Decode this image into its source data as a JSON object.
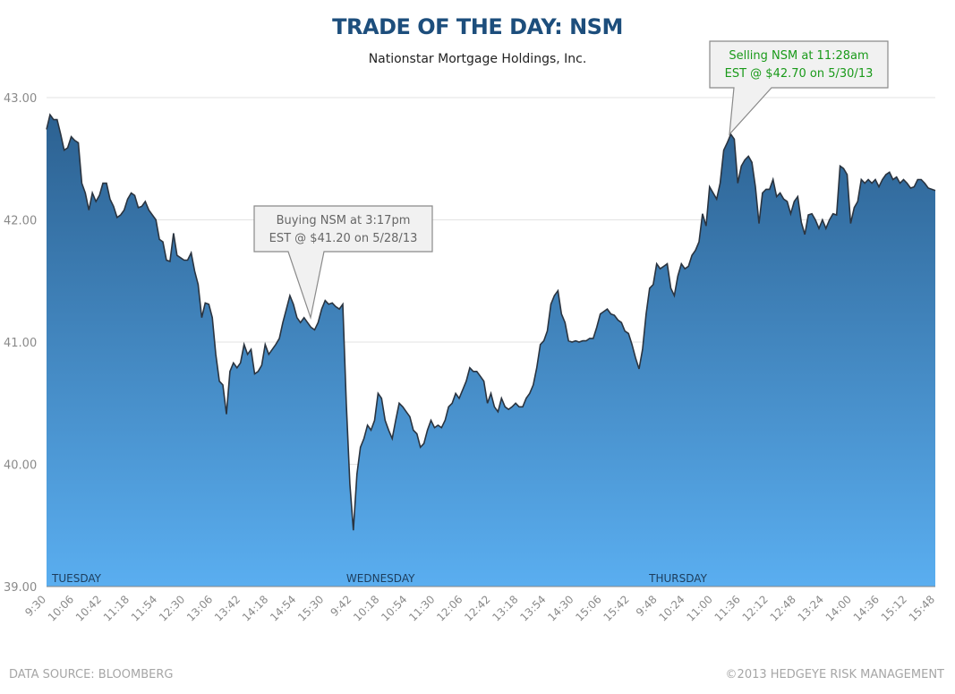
{
  "chart_data": {
    "type": "area",
    "title": "TRADE OF THE DAY: NSM",
    "subtitle": "Nationstar Mortgage Holdings, Inc.",
    "ylim": [
      39,
      43
    ],
    "yticks": [
      "39.00",
      "40.00",
      "41.00",
      "42.00",
      "43.00"
    ],
    "ytick_values": [
      39,
      40,
      41,
      42,
      43
    ],
    "grid": true,
    "xtick_labels": [
      "9:30",
      "10:06",
      "10:42",
      "11:18",
      "11:54",
      "12:30",
      "13:06",
      "13:42",
      "14:18",
      "14:54",
      "15:30",
      "9:42",
      "10:18",
      "10:54",
      "11:30",
      "12:06",
      "12:42",
      "13:18",
      "13:54",
      "14:30",
      "15:06",
      "15:42",
      "9:48",
      "10:24",
      "11:00",
      "11:36",
      "12:12",
      "12:48",
      "13:24",
      "14:00",
      "14:36",
      "15:12",
      "15:48"
    ],
    "day_labels": [
      {
        "label": "TUESDAY",
        "at_tick": 0
      },
      {
        "label": "WEDNESDAY",
        "at_tick": 10.6
      },
      {
        "label": "THURSDAY",
        "at_tick": 21.5
      }
    ],
    "values": [
      42.74,
      42.86,
      42.82,
      42.82,
      42.7,
      42.57,
      42.59,
      42.68,
      42.65,
      42.63,
      42.3,
      42.22,
      42.08,
      42.22,
      42.15,
      42.2,
      42.3,
      42.3,
      42.17,
      42.11,
      42.02,
      42.04,
      42.08,
      42.17,
      42.22,
      42.2,
      42.1,
      42.11,
      42.15,
      42.08,
      42.04,
      42.0,
      41.84,
      41.82,
      41.67,
      41.66,
      41.89,
      41.71,
      41.69,
      41.67,
      41.67,
      41.73,
      41.58,
      41.47,
      41.2,
      41.32,
      41.31,
      41.2,
      40.9,
      40.68,
      40.65,
      40.41,
      40.76,
      40.83,
      40.79,
      40.83,
      40.98,
      40.9,
      40.94,
      40.74,
      40.76,
      40.81,
      40.98,
      40.9,
      40.94,
      40.98,
      41.03,
      41.16,
      41.27,
      41.38,
      41.31,
      41.2,
      41.16,
      41.2,
      41.16,
      41.12,
      41.1,
      41.16,
      41.27,
      41.34,
      41.31,
      41.32,
      41.29,
      41.27,
      41.31,
      40.5,
      39.84,
      39.46,
      39.92,
      40.14,
      40.21,
      40.32,
      40.28,
      40.36,
      40.58,
      40.54,
      40.36,
      40.28,
      40.21,
      40.36,
      40.5,
      40.47,
      40.43,
      40.39,
      40.28,
      40.25,
      40.14,
      40.17,
      40.28,
      40.36,
      40.3,
      40.32,
      40.3,
      40.36,
      40.47,
      40.5,
      40.58,
      40.54,
      40.61,
      40.68,
      40.79,
      40.76,
      40.76,
      40.72,
      40.68,
      40.5,
      40.58,
      40.47,
      40.43,
      40.54,
      40.47,
      40.45,
      40.47,
      40.5,
      40.47,
      40.47,
      40.54,
      40.58,
      40.65,
      40.79,
      40.98,
      41.01,
      41.09,
      41.31,
      41.38,
      41.42,
      41.23,
      41.16,
      41.01,
      41.0,
      41.01,
      41.0,
      41.01,
      41.01,
      41.03,
      41.03,
      41.12,
      41.23,
      41.25,
      41.27,
      41.23,
      41.22,
      41.18,
      41.16,
      41.09,
      41.07,
      40.98,
      40.87,
      40.78,
      40.94,
      41.23,
      41.44,
      41.47,
      41.64,
      41.6,
      41.62,
      41.64,
      41.44,
      41.38,
      41.54,
      41.64,
      41.6,
      41.62,
      41.71,
      41.75,
      41.82,
      42.05,
      41.95,
      42.27,
      42.22,
      42.17,
      42.3,
      42.57,
      42.63,
      42.7,
      42.66,
      42.3,
      42.44,
      42.49,
      42.52,
      42.47,
      42.27,
      41.97,
      42.22,
      42.25,
      42.25,
      42.33,
      42.19,
      42.22,
      42.17,
      42.15,
      42.05,
      42.15,
      42.19,
      41.98,
      41.88,
      42.04,
      42.05,
      42.0,
      41.93,
      42.0,
      41.93,
      42.0,
      42.05,
      42.04,
      42.44,
      42.42,
      42.37,
      41.97,
      42.1,
      42.15,
      42.33,
      42.3,
      42.33,
      42.3,
      42.33,
      42.27,
      42.33,
      42.37,
      42.39,
      42.33,
      42.35,
      42.3,
      42.33,
      42.3,
      42.26,
      42.27,
      42.33,
      42.33,
      42.3,
      42.26,
      42.25,
      42.24
    ],
    "annotations": [
      {
        "line1": "Buying NSM at 3:17pm",
        "line2": "EST @ $41.20 on 5/28/13",
        "price": 41.2,
        "color": "#666666"
      },
      {
        "line1": "Selling NSM at 11:28am",
        "line2": "EST @ $42.70 on 5/30/13",
        "price": 42.7,
        "color": "#1a9a1a"
      }
    ],
    "colors": {
      "fill_top": "#2c6191",
      "fill_bottom": "#5aaef0",
      "line": "#2a3440",
      "grid": "#e3e3e3"
    }
  },
  "footer": {
    "source": "DATA SOURCE: BLOOMBERG",
    "copyright": "©2013 HEDGEYE RISK MANAGEMENT"
  }
}
